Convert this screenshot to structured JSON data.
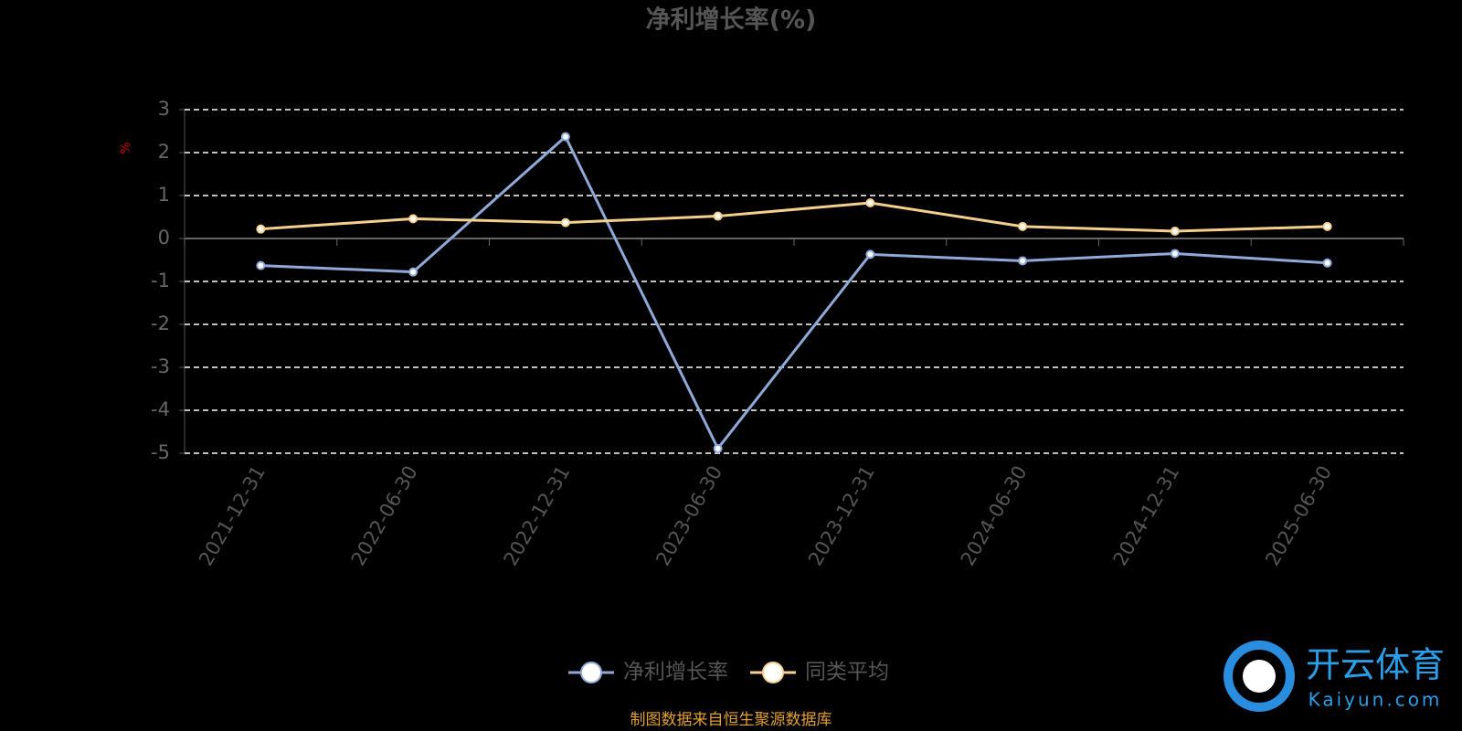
{
  "chart_data": {
    "type": "line",
    "title": "净利增长率(%)",
    "y_label": "%",
    "categories": [
      "2021-12-31",
      "2022-06-30",
      "2022-12-31",
      "2023-06-30",
      "2023-12-31",
      "2024-06-30",
      "2024-12-31",
      "2025-06-30"
    ],
    "series": [
      {
        "name": "净利增长率",
        "color": "#8fa9d8",
        "values": [
          -0.63,
          -0.78,
          2.37,
          -4.89,
          -0.37,
          -0.52,
          -0.35,
          -0.57
        ]
      },
      {
        "name": "同类平均",
        "color": "#f5d08c",
        "values": [
          0.22,
          0.46,
          0.37,
          0.52,
          0.83,
          0.28,
          0.17,
          0.28
        ]
      }
    ],
    "ylim": [
      -5,
      3
    ],
    "yticks": [
      -5,
      -4,
      -3,
      -2,
      -1,
      0,
      1,
      2,
      3
    ],
    "grid": true,
    "legend": "bottom",
    "source": "制图数据来自恒生聚源数据库"
  },
  "watermark": {
    "brand": "开云体育",
    "site": "Kaiyun.com"
  }
}
